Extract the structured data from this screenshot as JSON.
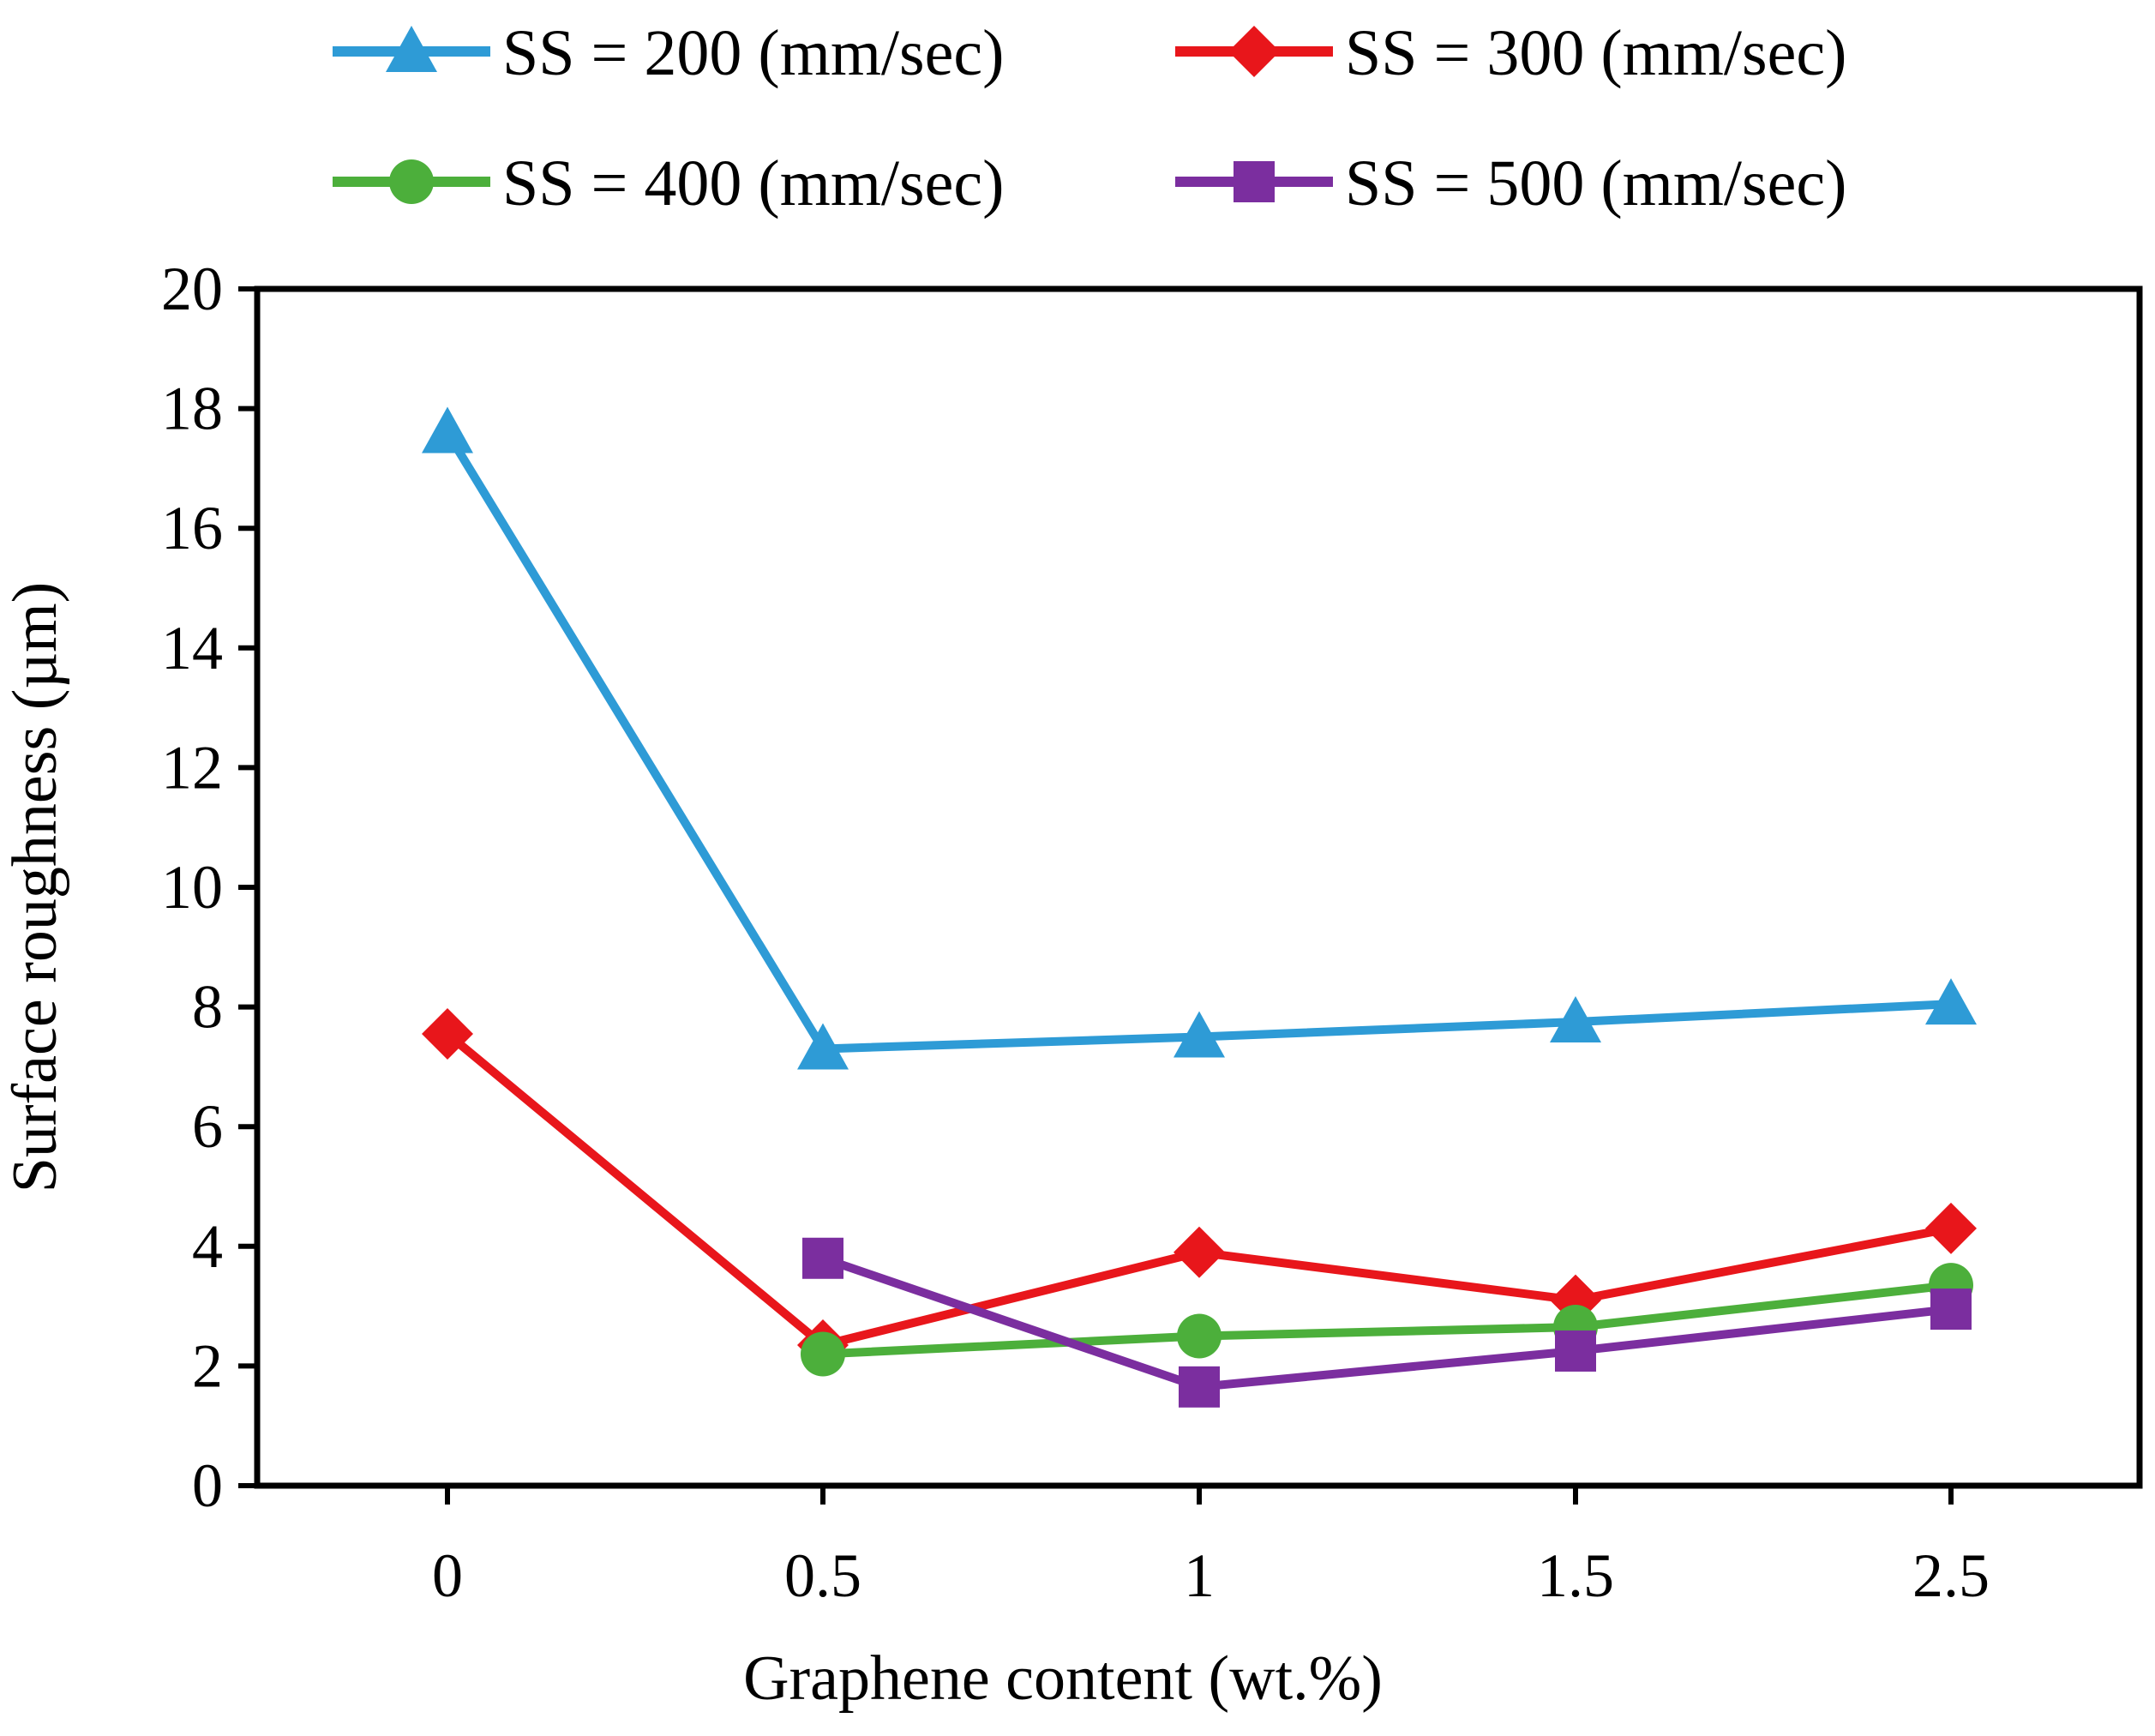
{
  "chart_data": {
    "type": "line",
    "title": "",
    "xlabel": "Graphene content (wt.%)",
    "ylabel": "Surface roughness (µm)",
    "categories": [
      "0",
      "0.5",
      "1",
      "1.5",
      "2.5"
    ],
    "ylim": [
      0,
      20
    ],
    "yticks": [
      0,
      2,
      4,
      6,
      8,
      10,
      12,
      14,
      16,
      18,
      20
    ],
    "ytick_labels": [
      "0",
      "2",
      "4",
      "6",
      "8",
      "10",
      "12",
      "14",
      "16",
      "18",
      "20"
    ],
    "grid": false,
    "legend_position": "top",
    "series": [
      {
        "name": "SS = 200 (mm/sec)",
        "color": "#2E9BD6",
        "marker": "triangle",
        "values": [
          17.6,
          7.3,
          7.5,
          7.75,
          8.05
        ]
      },
      {
        "name": "SS = 300 (mm/sec)",
        "color": "#E8161B",
        "marker": "diamond",
        "values": [
          7.55,
          2.35,
          3.9,
          3.1,
          4.3
        ]
      },
      {
        "name": "SS = 400 (mm/sec)",
        "color": "#4CAF3B",
        "marker": "circle",
        "values": [
          null,
          2.2,
          2.5,
          2.65,
          3.35
        ]
      },
      {
        "name": "SS = 500 (mm/sec)",
        "color": "#7B2E9F",
        "marker": "square",
        "values": [
          null,
          3.8,
          1.65,
          2.25,
          2.95
        ]
      }
    ]
  }
}
